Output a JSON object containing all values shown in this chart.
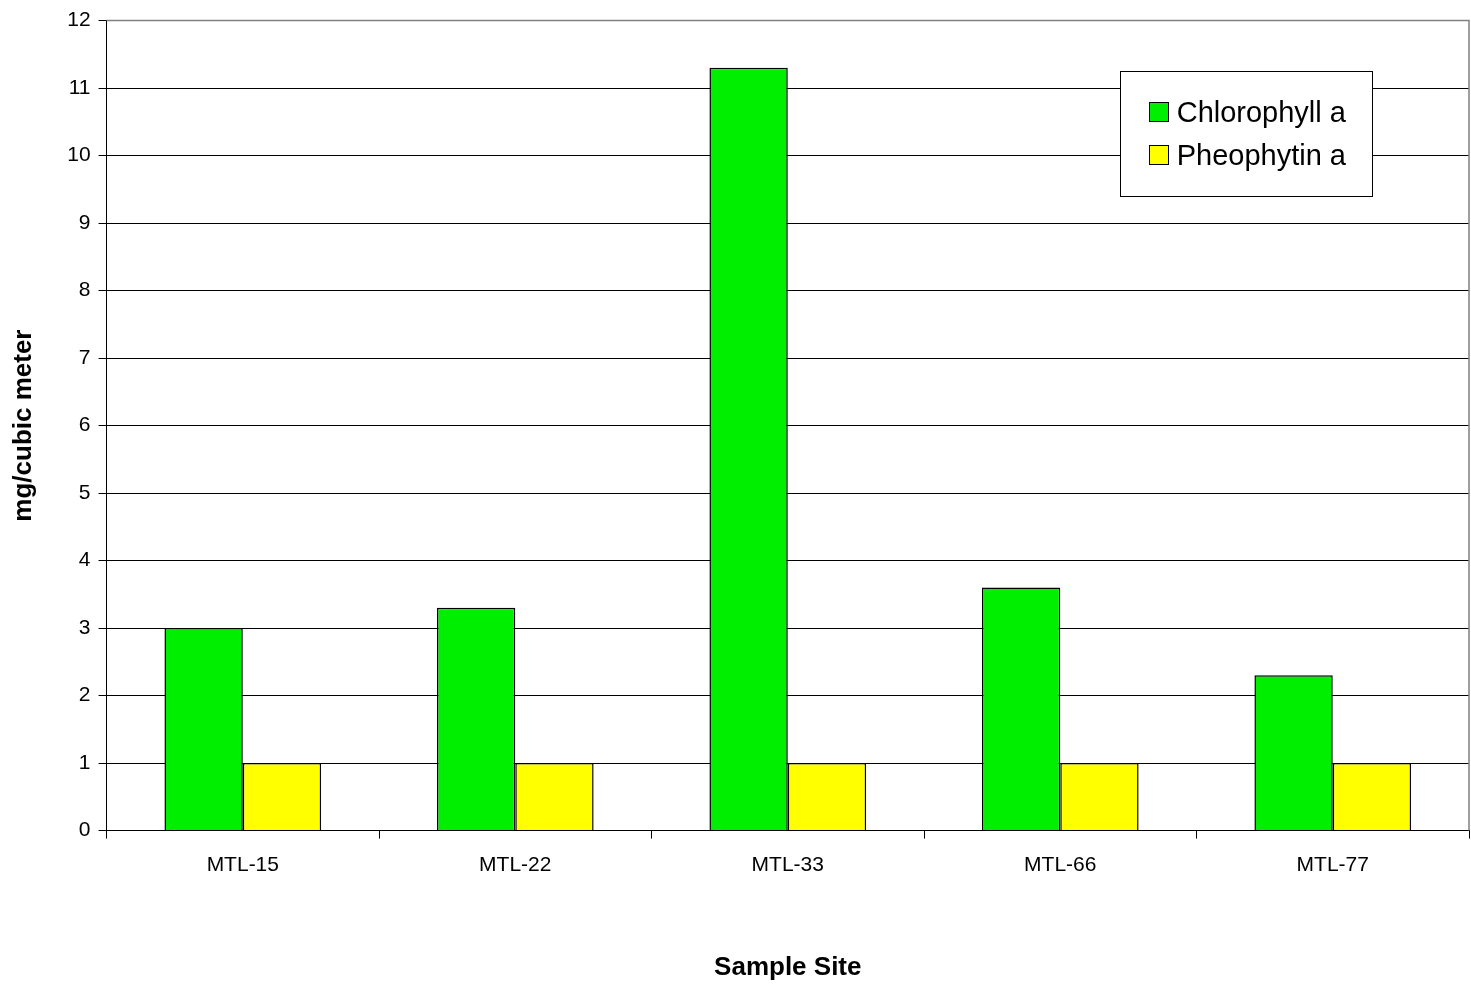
{
  "chart_data": {
    "type": "bar",
    "xlabel": "Sample Site",
    "ylabel": "mg/cubic meter",
    "categories": [
      "MTL-15",
      "MTL-22",
      "MTL-33",
      "MTL-66",
      "MTL-77"
    ],
    "series": [
      {
        "name": "Chlorophyll a",
        "color": "#00ee00",
        "values": [
          3.0,
          3.3,
          11.3,
          3.6,
          2.3
        ]
      },
      {
        "name": "Pheophytin a",
        "color": "#ffff00",
        "values": [
          1,
          1,
          1,
          1,
          1
        ]
      }
    ],
    "ylim": [
      0,
      12
    ],
    "yticks": [
      0,
      1,
      2,
      3,
      4,
      5,
      6,
      7,
      8,
      9,
      10,
      11,
      12
    ],
    "grid": "y",
    "legend": "top right"
  }
}
